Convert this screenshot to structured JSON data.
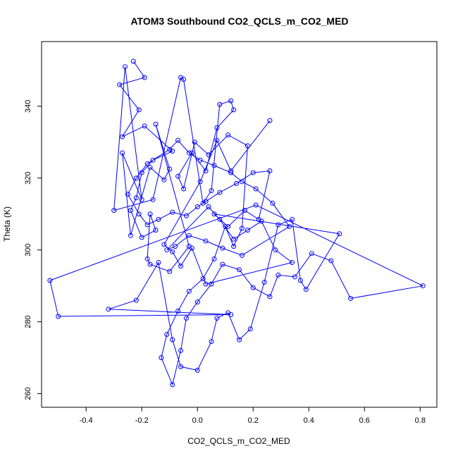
{
  "chart_data": {
    "type": "line",
    "title": "ATOM3 Southbound CO2_QCLS_m_CO2_MED",
    "xlabel": "CO2_QCLS_m_CO2_MED",
    "ylabel": "Theta (K)",
    "xlim": [
      -0.56,
      0.86
    ],
    "ylim": [
      256.2,
      358.0
    ],
    "x_ticks": [
      -0.4,
      -0.2,
      0.0,
      0.2,
      0.4,
      0.6,
      0.8
    ],
    "x_tick_labels": [
      "-0.4",
      "-0.2",
      "0.0",
      "0.2",
      "0.4",
      "0.6",
      "0.8"
    ],
    "y_ticks": [
      260,
      280,
      300,
      320,
      340
    ],
    "y_tick_labels": [
      "260",
      "280",
      "300",
      "320",
      "340"
    ],
    "grid": false,
    "marker": "open-circle",
    "color": "#0000ff",
    "series": [
      {
        "x": [
          -0.23,
          -0.19,
          -0.28,
          -0.21,
          -0.27,
          -0.19,
          -0.09,
          -0.16,
          -0.2,
          -0.22,
          -0.24,
          -0.2,
          -0.15,
          -0.17,
          -0.18,
          -0.17,
          -0.1,
          -0.03,
          -0.15,
          -0.1,
          -0.12,
          -0.17,
          -0.24,
          -0.27,
          -0.2,
          -0.26,
          -0.3,
          -0.16,
          -0.06,
          -0.05,
          0.02,
          0.05,
          0.08,
          0.12,
          0.13,
          0.07,
          0.03,
          -0.02,
          -0.07,
          -0.05,
          -0.01,
          0.04,
          0.11,
          0.18,
          0.16,
          0.13,
          0.1,
          0.06,
          0.02,
          -0.03,
          -0.07,
          -0.11,
          -0.13,
          -0.09,
          -0.06,
          -0.04,
          0.0,
          0.05,
          0.09,
          0.15,
          0.2,
          0.26,
          0.29,
          0.35,
          0.41,
          0.48,
          0.55,
          0.81,
          0.21,
          -0.53,
          -0.5,
          0.12,
          -0.32,
          -0.22,
          -0.14,
          -0.09,
          -0.06,
          0.0,
          0.05,
          0.07,
          0.11,
          0.15,
          0.19,
          0.24,
          0.29,
          0.34,
          0.37,
          0.39,
          0.51,
          0.06,
          0.11,
          0.17,
          0.22,
          0.26,
          0.2,
          0.14,
          0.08,
          0.03,
          0.0,
          -0.04,
          -0.09,
          -0.14,
          -0.18,
          -0.21,
          -0.25,
          -0.22,
          -0.18,
          -0.1,
          -0.07,
          -0.03,
          0.01,
          0.06,
          0.12,
          0.16,
          0.21,
          0.27,
          0.33,
          0.16,
          0.09,
          0.03,
          -0.03,
          -0.08,
          -0.11,
          0.04,
          0.08,
          0.13,
          0.18,
          0.23,
          0.28,
          0.34,
          0.03,
          -0.02,
          -0.06,
          -0.09,
          -0.12,
          0.01,
          0.07,
          0.12,
          0.26
        ],
        "y": [
          352.5,
          348.0,
          346.0,
          339.0,
          331.5,
          334.5,
          327.5,
          325.0,
          321.5,
          314.5,
          311.0,
          303.5,
          305.5,
          310.0,
          297.5,
          296.0,
          294.0,
          301.0,
          335.0,
          322.5,
          319.5,
          323.0,
          304.0,
          327.0,
          314.0,
          351.0,
          311.0,
          314.0,
          348.0,
          347.5,
          313.0,
          316.5,
          340.5,
          341.5,
          339.0,
          334.0,
          322.0,
          327.0,
          320.5,
          317.0,
          330.0,
          326.5,
          332.0,
          329.0,
          306.0,
          301.0,
          306.5,
          297.5,
          292.0,
          288.5,
          283.0,
          276.5,
          270.0,
          262.5,
          272.0,
          281.0,
          285.5,
          290.5,
          296.0,
          294.5,
          289.5,
          287.0,
          293.0,
          292.5,
          299.0,
          297.0,
          286.5,
          290.0,
          312.5,
          291.5,
          281.5,
          282.0,
          283.5,
          286.0,
          296.5,
          275.0,
          267.5,
          266.5,
          274.5,
          281.0,
          282.5,
          275.0,
          278.0,
          291.0,
          307.0,
          308.5,
          291.5,
          289.0,
          304.5,
          310.0,
          306.5,
          311.0,
          308.5,
          322.0,
          321.5,
          318.5,
          316.0,
          313.5,
          312.0,
          309.5,
          310.5,
          308.5,
          307.0,
          310.0,
          315.5,
          320.0,
          324.0,
          328.0,
          330.5,
          327.0,
          325.0,
          323.5,
          321.5,
          319.0,
          317.0,
          313.0,
          306.5,
          298.5,
          300.5,
          302.5,
          304.0,
          301.0,
          300.0,
          312.0,
          308.5,
          303.0,
          305.5,
          308.0,
          300.0,
          296.5,
          290.5,
          300.5,
          295.5,
          299.5,
          301.5,
          319.0,
          330.5,
          322.0,
          336.0
        ]
      }
    ]
  }
}
